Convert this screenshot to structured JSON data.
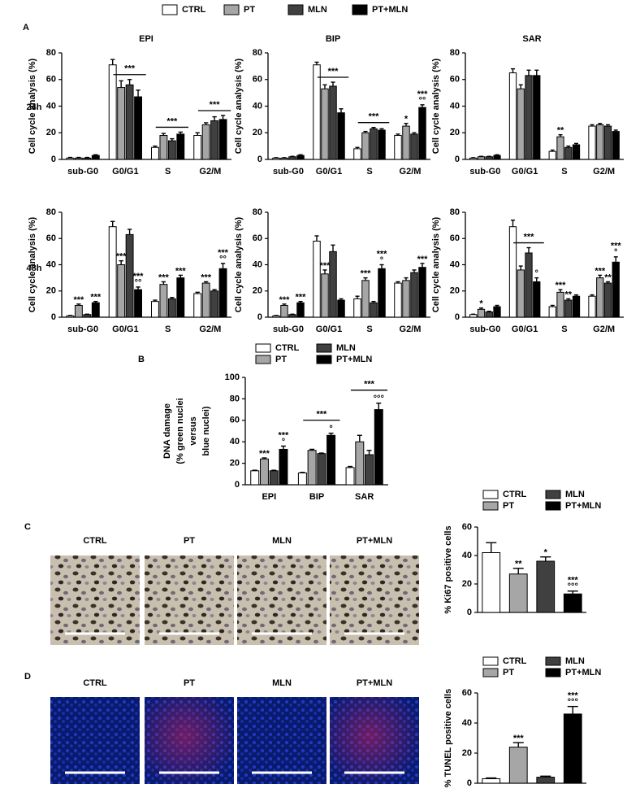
{
  "chart_data": [
    {
      "type": "bar",
      "panel": "A",
      "title": "EPI",
      "row_label": "24h",
      "ylabel": "Cell cycle analysis (%)",
      "categories": [
        "sub-G0",
        "G0/G1",
        "S",
        "G2/M"
      ],
      "ylim": [
        0,
        80
      ],
      "yticks": [
        0,
        20,
        40,
        60,
        80
      ],
      "bracket_labels": [
        null,
        "***",
        "***",
        "***"
      ],
      "series": [
        {
          "name": "CTRL",
          "color": "#ffffff",
          "values": [
            1,
            71,
            9,
            18
          ],
          "errors": [
            0.5,
            4,
            1,
            2
          ]
        },
        {
          "name": "PT",
          "color": "#a6a6a6",
          "values": [
            1,
            54,
            18,
            26
          ],
          "errors": [
            0.5,
            5,
            1.5,
            1.5
          ]
        },
        {
          "name": "MLN",
          "color": "#404040",
          "values": [
            1,
            56,
            14,
            29
          ],
          "errors": [
            0.5,
            4,
            1.5,
            3
          ]
        },
        {
          "name": "PT+MLN",
          "color": "#000000",
          "values": [
            3,
            47,
            19,
            30
          ],
          "errors": [
            0.5,
            5,
            1.5,
            3
          ]
        }
      ]
    },
    {
      "type": "bar",
      "title": "BIP",
      "ylabel": "Cell cycle analysis (%)",
      "categories": [
        "sub-G0",
        "G0/G1",
        "S",
        "G2/M"
      ],
      "ylim": [
        0,
        80
      ],
      "yticks": [
        0,
        20,
        40,
        60,
        80
      ],
      "bracket_labels": [
        null,
        "***",
        "***",
        null
      ],
      "series": [
        {
          "color": "#ffffff",
          "values": [
            1,
            71,
            8,
            18
          ],
          "errors": [
            0.3,
            2,
            1,
            1
          ]
        },
        {
          "color": "#a6a6a6",
          "values": [
            1,
            53,
            20,
            25
          ],
          "errors": [
            0.3,
            3,
            1,
            2
          ],
          "stars": [
            null,
            null,
            null,
            "*"
          ]
        },
        {
          "color": "#404040",
          "values": [
            2,
            55,
            23,
            19
          ],
          "errors": [
            0.3,
            3,
            1,
            1
          ]
        },
        {
          "color": "#000000",
          "values": [
            3,
            35,
            22,
            39
          ],
          "errors": [
            0.5,
            3,
            1,
            2
          ],
          "stars": [
            null,
            null,
            null,
            "***"
          ],
          "circles": [
            null,
            null,
            null,
            "°°"
          ]
        }
      ]
    },
    {
      "type": "bar",
      "title": "SAR",
      "ylabel": "Cell cycle analysis (%)",
      "categories": [
        "sub-G0",
        "G0/G1",
        "S",
        "G2/M"
      ],
      "ylim": [
        0,
        80
      ],
      "yticks": [
        0,
        20,
        40,
        60,
        80
      ],
      "series": [
        {
          "color": "#ffffff",
          "values": [
            1,
            65,
            6,
            25
          ],
          "errors": [
            0.3,
            3,
            1,
            1
          ]
        },
        {
          "color": "#a6a6a6",
          "values": [
            2,
            53,
            17,
            26
          ],
          "errors": [
            0.3,
            3,
            1.5,
            1
          ],
          "stars": [
            null,
            null,
            "**",
            null
          ]
        },
        {
          "color": "#404040",
          "values": [
            2,
            63,
            9,
            25
          ],
          "errors": [
            0.3,
            4,
            1,
            1
          ]
        },
        {
          "color": "#000000",
          "values": [
            3,
            63,
            11,
            21
          ],
          "errors": [
            0.5,
            4,
            1,
            1
          ]
        }
      ]
    },
    {
      "type": "bar",
      "row_label": "48h",
      "ylabel": "Cell cycle analysis (%)",
      "categories": [
        "sub-G0",
        "G0/G1",
        "S",
        "G2/M"
      ],
      "ylim": [
        0,
        80
      ],
      "yticks": [
        0,
        20,
        40,
        60,
        80
      ],
      "series": [
        {
          "color": "#ffffff",
          "values": [
            1,
            69,
            12,
            18
          ],
          "errors": [
            0.3,
            4,
            1,
            1
          ]
        },
        {
          "color": "#a6a6a6",
          "values": [
            9,
            40,
            25,
            26
          ],
          "errors": [
            1,
            3,
            2,
            1
          ],
          "stars": [
            "***",
            "***",
            "***",
            "***"
          ]
        },
        {
          "color": "#404040",
          "values": [
            2,
            63,
            14,
            20
          ],
          "errors": [
            0.3,
            4,
            1,
            1
          ]
        },
        {
          "color": "#000000",
          "values": [
            11,
            21,
            30,
            37
          ],
          "errors": [
            1,
            2,
            2,
            4
          ],
          "stars": [
            "***",
            "***",
            "***",
            "***"
          ],
          "circles": [
            null,
            "°°",
            null,
            "°°"
          ]
        }
      ]
    },
    {
      "type": "bar",
      "ylabel": "Cell cycle analysis (%)",
      "categories": [
        "sub-G0",
        "G0/G1",
        "S",
        "G2/M"
      ],
      "ylim": [
        0,
        80
      ],
      "yticks": [
        0,
        20,
        40,
        60,
        80
      ],
      "series": [
        {
          "color": "#ffffff",
          "values": [
            1,
            58,
            14,
            26
          ],
          "errors": [
            0.3,
            4,
            2,
            1
          ]
        },
        {
          "color": "#a6a6a6",
          "values": [
            9,
            33,
            28,
            28
          ],
          "errors": [
            1,
            3,
            2,
            2
          ],
          "stars": [
            "***",
            "***",
            "***",
            null
          ]
        },
        {
          "color": "#404040",
          "values": [
            2,
            50,
            11,
            34
          ],
          "errors": [
            0.3,
            5,
            1,
            2
          ]
        },
        {
          "color": "#000000",
          "values": [
            11,
            13,
            37,
            38
          ],
          "errors": [
            1,
            1,
            3,
            3
          ],
          "stars": [
            "***",
            null,
            "***",
            "***"
          ],
          "circles": [
            null,
            null,
            "°",
            null
          ]
        }
      ]
    },
    {
      "type": "bar",
      "ylabel": "Cell cycle analysis (%)",
      "categories": [
        "sub-G0",
        "G0/G1",
        "S",
        "G2/M"
      ],
      "ylim": [
        0,
        80
      ],
      "yticks": [
        0,
        20,
        40,
        60,
        80
      ],
      "bracket_labels": [
        null,
        "***",
        null,
        null
      ],
      "series": [
        {
          "color": "#ffffff",
          "values": [
            2,
            69,
            8,
            16
          ],
          "errors": [
            0.3,
            5,
            1,
            1
          ]
        },
        {
          "color": "#a6a6a6",
          "values": [
            6,
            36,
            19,
            30
          ],
          "errors": [
            1,
            3,
            2,
            2
          ],
          "stars": [
            "*",
            null,
            "***",
            "***"
          ]
        },
        {
          "color": "#404040",
          "values": [
            4,
            49,
            13,
            26
          ],
          "errors": [
            0.5,
            4,
            1,
            1
          ],
          "stars": [
            null,
            null,
            "**",
            "**"
          ]
        },
        {
          "color": "#000000",
          "values": [
            8,
            27,
            16,
            42
          ],
          "errors": [
            1,
            3,
            1,
            4
          ],
          "stars": [
            null,
            null,
            null,
            "***"
          ],
          "circles": [
            null,
            "°",
            null,
            "°"
          ]
        }
      ]
    },
    {
      "type": "bar",
      "panel": "B",
      "ylabel_lines": [
        "DNA damage",
        "(% green nuclei",
        "versus",
        "blue nuclei)"
      ],
      "categories": [
        "EPI",
        "BIP",
        "SAR"
      ],
      "ylim": [
        0,
        100
      ],
      "yticks": [
        0,
        20,
        40,
        60,
        80,
        100
      ],
      "bracket_labels": [
        null,
        "***",
        "***"
      ],
      "series": [
        {
          "name": "CTRL",
          "color": "#ffffff",
          "values": [
            13,
            11,
            16
          ],
          "errors": [
            0.5,
            0.5,
            1
          ]
        },
        {
          "name": "PT",
          "color": "#a6a6a6",
          "values": [
            24,
            32,
            40
          ],
          "errors": [
            1,
            1,
            6
          ],
          "stars": [
            "***",
            null,
            null
          ]
        },
        {
          "name": "MLN",
          "color": "#404040",
          "values": [
            13,
            29,
            28
          ],
          "errors": [
            0.5,
            0.5,
            4
          ]
        },
        {
          "name": "PT+MLN",
          "color": "#000000",
          "values": [
            33,
            46,
            70
          ],
          "errors": [
            3,
            2,
            6
          ],
          "stars": [
            "***",
            null,
            null
          ],
          "circles": [
            "°",
            "°",
            "°°°"
          ]
        }
      ]
    },
    {
      "type": "bar",
      "panel": "C",
      "ylabel": "% Ki67 positive cells",
      "categories": [
        null
      ],
      "ylim": [
        0,
        60
      ],
      "yticks": [
        0,
        20,
        40,
        60
      ],
      "series": [
        {
          "name": "CTRL",
          "color": "#ffffff",
          "values": [
            42
          ],
          "errors": [
            7
          ]
        },
        {
          "name": "PT",
          "color": "#a6a6a6",
          "values": [
            27
          ],
          "errors": [
            4
          ],
          "stars": [
            "**"
          ]
        },
        {
          "name": "MLN",
          "color": "#404040",
          "values": [
            36
          ],
          "errors": [
            3
          ],
          "stars": [
            "*"
          ]
        },
        {
          "name": "PT+MLN",
          "color": "#000000",
          "values": [
            13
          ],
          "errors": [
            2
          ],
          "stars": [
            "***"
          ],
          "circles": [
            "°°°"
          ]
        }
      ]
    },
    {
      "type": "bar",
      "panel": "D",
      "ylabel": "% TUNEL positive cells",
      "categories": [
        null
      ],
      "ylim": [
        0,
        60
      ],
      "yticks": [
        0,
        20,
        40,
        60
      ],
      "series": [
        {
          "name": "CTRL",
          "color": "#ffffff",
          "values": [
            3
          ],
          "errors": [
            0.5
          ]
        },
        {
          "name": "PT",
          "color": "#a6a6a6",
          "values": [
            24
          ],
          "errors": [
            3
          ],
          "stars": [
            "***"
          ]
        },
        {
          "name": "MLN",
          "color": "#404040",
          "values": [
            4
          ],
          "errors": [
            0.7
          ]
        },
        {
          "name": "PT+MLN",
          "color": "#000000",
          "values": [
            46
          ],
          "errors": [
            5
          ],
          "stars": [
            "***"
          ],
          "circles": [
            "°°°"
          ]
        }
      ]
    }
  ],
  "image_panels": [
    {
      "labels": [
        "CTRL",
        "PT",
        "MLN",
        "PT+MLN"
      ]
    },
    {
      "labels": [
        "CTRL",
        "PT",
        "MLN",
        "PT+MLN"
      ]
    }
  ]
}
